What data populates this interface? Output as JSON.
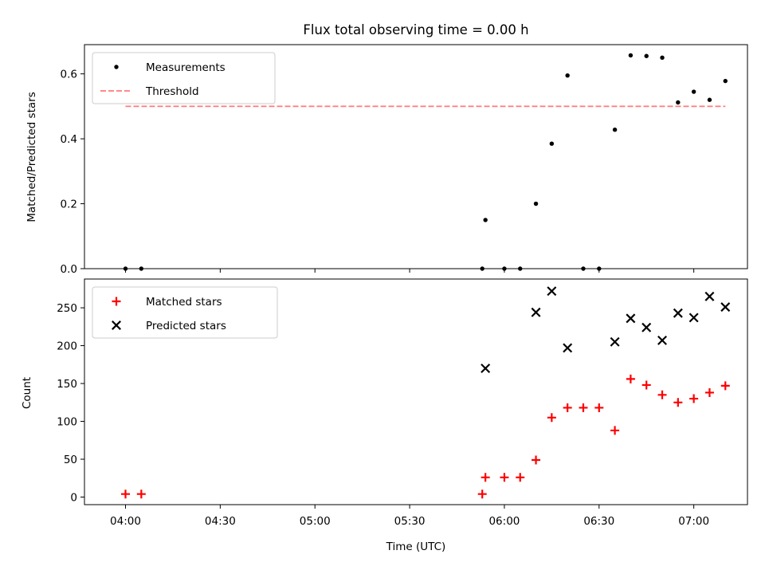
{
  "chart_data": [
    {
      "type": "scatter",
      "title": "Flux total observing time = 0.00 h",
      "xlabel": "",
      "ylabel": "Matched/Predicted stars",
      "xlim": [
        227,
        437
      ],
      "ylim": [
        0,
        0.69
      ],
      "yticks": [
        0.0,
        0.2,
        0.4,
        0.6
      ],
      "ytick_labels": [
        "0.0",
        "0.2",
        "0.4",
        "0.6"
      ],
      "grid": false,
      "legend": "top-left",
      "series": [
        {
          "name": "Measurements",
          "marker": "dot",
          "color": "#000000",
          "x": [
            240,
            245,
            353,
            354,
            360,
            365,
            370,
            375,
            380,
            385,
            390,
            395,
            400,
            405,
            410,
            415,
            420,
            425,
            430
          ],
          "y": [
            0.0,
            0.0,
            0.0,
            0.15,
            0.0,
            0.0,
            0.2,
            0.385,
            0.595,
            0.0,
            0.0,
            0.428,
            0.657,
            0.655,
            0.65,
            0.512,
            0.545,
            0.52,
            0.578
          ]
        },
        {
          "name": "Threshold",
          "style": "dashed",
          "color": "#ff7a7a",
          "x": [
            240,
            430
          ],
          "y": [
            0.5,
            0.5
          ]
        }
      ]
    },
    {
      "type": "scatter",
      "title": "",
      "xlabel": "Time (UTC)",
      "ylabel": "Count",
      "xlim": [
        227,
        437
      ],
      "ylim": [
        -10,
        288
      ],
      "yticks": [
        0,
        50,
        100,
        150,
        200,
        250
      ],
      "ytick_labels": [
        "0",
        "50",
        "100",
        "150",
        "200",
        "250"
      ],
      "xticks": [
        240,
        270,
        300,
        330,
        360,
        390,
        420
      ],
      "xtick_labels": [
        "04:00",
        "04:30",
        "05:00",
        "05:30",
        "06:00",
        "06:30",
        "07:00"
      ],
      "grid": false,
      "legend": "top-left",
      "series": [
        {
          "name": "Matched stars",
          "marker": "plus",
          "color": "#ff0000",
          "x": [
            240,
            245,
            353,
            354,
            360,
            365,
            370,
            375,
            380,
            385,
            390,
            395,
            400,
            405,
            410,
            415,
            420,
            425,
            430
          ],
          "y": [
            4,
            4,
            4,
            26,
            26,
            26,
            49,
            105,
            118,
            118,
            118,
            88,
            156,
            148,
            135,
            125,
            130,
            138,
            147
          ]
        },
        {
          "name": "Predicted stars",
          "marker": "x",
          "color": "#000000",
          "x": [
            354,
            370,
            375,
            380,
            395,
            400,
            405,
            410,
            415,
            420,
            425,
            430
          ],
          "y": [
            170,
            244,
            272,
            197,
            205,
            236,
            224,
            207,
            243,
            237,
            265,
            251
          ]
        }
      ]
    }
  ]
}
